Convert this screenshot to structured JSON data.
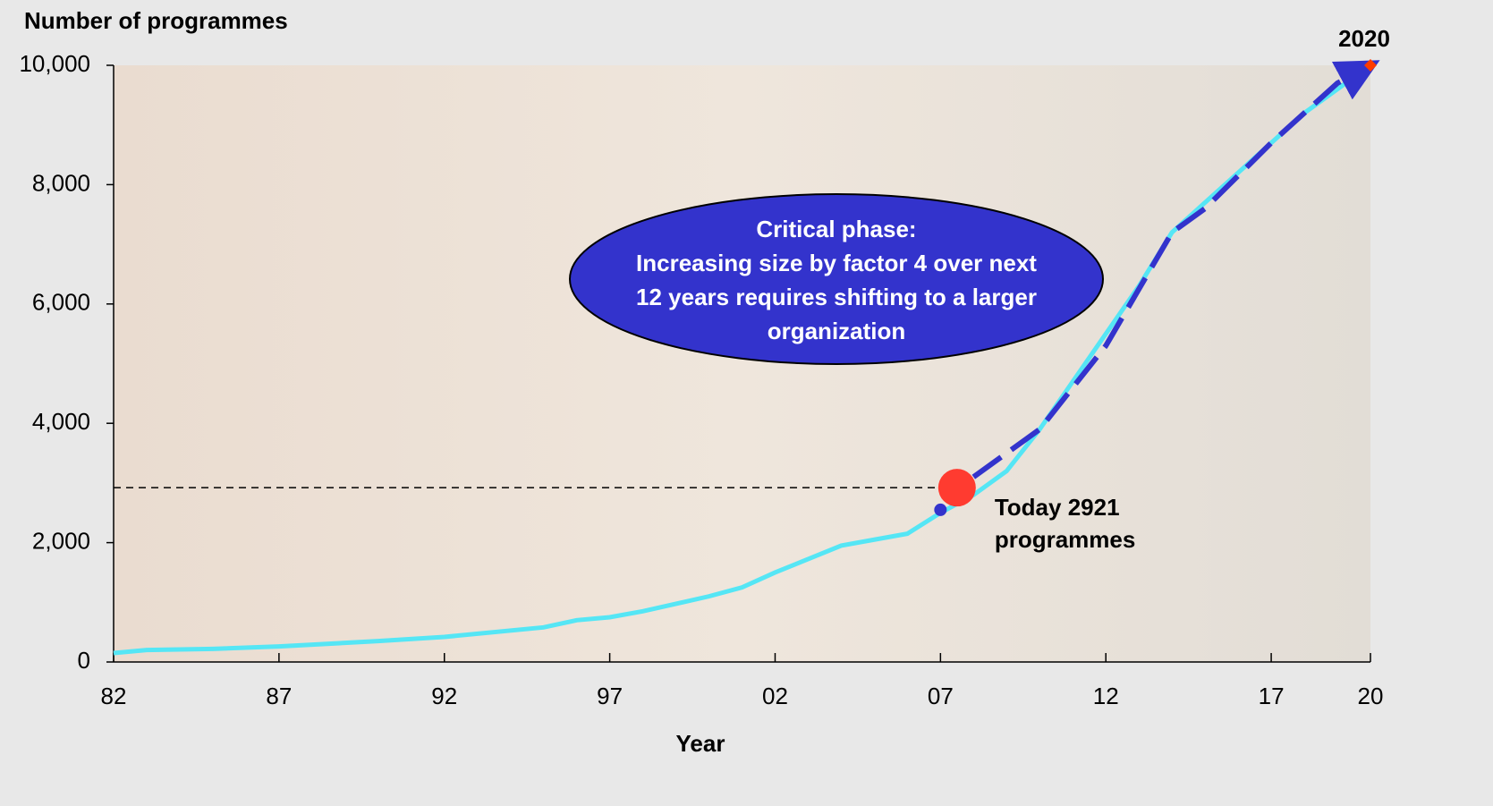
{
  "chart_data": {
    "type": "line",
    "y_axis_title": "Number of programmes",
    "x_axis_title": "Year",
    "xlim": [
      1982,
      2020
    ],
    "xticks": [
      {
        "value": 1982,
        "label": "82"
      },
      {
        "value": 1987,
        "label": "87"
      },
      {
        "value": 1992,
        "label": "92"
      },
      {
        "value": 1997,
        "label": "97"
      },
      {
        "value": 2002,
        "label": "02"
      },
      {
        "value": 2007,
        "label": "07"
      },
      {
        "value": 2012,
        "label": "12"
      },
      {
        "value": 2017,
        "label": "17"
      },
      {
        "value": 2020,
        "label": "20"
      }
    ],
    "ylim": [
      0,
      10000
    ],
    "yticks": [
      0,
      {
        "value": 2000,
        "label": "2,000"
      },
      {
        "value": 4000,
        "label": "4,000"
      },
      {
        "value": 6000,
        "label": "6,000"
      },
      {
        "value": 8000,
        "label": "8,000"
      },
      {
        "value": 10000,
        "label": "10,000"
      }
    ],
    "series": [
      {
        "color": "#55e6f5",
        "style": "solid",
        "x": [
          1982,
          1983,
          1985,
          1987,
          1990,
          1992,
          1995,
          1996,
          1997,
          1998,
          2000,
          2001,
          2002,
          2004,
          2005,
          2006,
          2007,
          2008,
          2009,
          2010,
          2011,
          2012,
          2013,
          2014,
          2015,
          2016,
          2017,
          2018,
          2019,
          2020
        ],
        "values": [
          150,
          200,
          220,
          260,
          350,
          420,
          580,
          700,
          750,
          850,
          1100,
          1250,
          1500,
          1950,
          2050,
          2150,
          2500,
          2800,
          3200,
          3900,
          4700,
          5500,
          6300,
          7200,
          7700,
          8200,
          8700,
          9200,
          9600,
          10000
        ]
      },
      {
        "color": "#3333cc",
        "style": "dashed",
        "x": [
          2008,
          2010,
          2012,
          2014,
          2015,
          2017,
          2019,
          2020
        ],
        "values": [
          3100,
          3900,
          5300,
          7200,
          7600,
          8700,
          9700,
          10000
        ]
      }
    ],
    "start_point": {
      "x": 2007,
      "value": 2550,
      "color": "#3333cc"
    },
    "today": {
      "x": 2007.5,
      "value": 2921,
      "color": "#ff3b30",
      "label_lines": [
        "Today 2921",
        "programmes"
      ]
    },
    "target": {
      "x": 2020,
      "value": 10000,
      "color": "#ff3b00",
      "label": "2020"
    },
    "callout": {
      "lines": [
        "Critical phase:",
        "Increasing size by factor 4 over next",
        "12 years requires shifting to a larger",
        "organization"
      ],
      "color": "#3333cc"
    }
  }
}
